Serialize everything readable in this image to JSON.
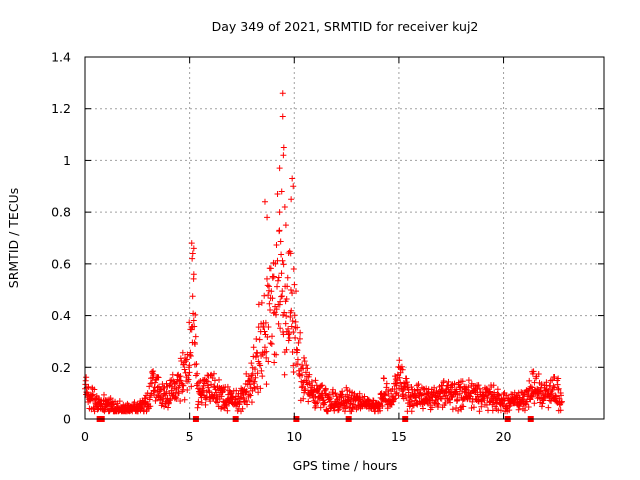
{
  "chart_data": {
    "type": "scatter",
    "title": "Day 349 of 2021, SRMTID for receiver kuj2",
    "xlabel": "GPS time / hours",
    "ylabel": "SRMTID / TECUs",
    "xlim": [
      0,
      24.8
    ],
    "ylim": [
      0,
      1.4
    ],
    "xticks": [
      0,
      5,
      10,
      15,
      20
    ],
    "xtick_labels": [
      "0",
      "5",
      "10",
      "15",
      "20"
    ],
    "yticks": [
      0,
      0.2,
      0.4,
      0.6,
      0.8,
      1.0,
      1.2,
      1.4
    ],
    "ytick_labels": [
      "0",
      "0.2",
      "0.4",
      "0.6",
      "0.8",
      "1",
      "1.2",
      "1.4"
    ],
    "grid": true,
    "marker": "plus",
    "color": "#ff0000",
    "envelope": {
      "x": [
        0.0,
        0.3,
        0.7,
        1.0,
        1.5,
        2.0,
        2.5,
        3.0,
        3.3,
        3.6,
        4.0,
        4.5,
        4.8,
        5.0,
        5.2,
        5.4,
        5.7,
        6.0,
        6.5,
        7.0,
        7.5,
        8.0,
        8.3,
        8.6,
        9.0,
        9.3,
        9.5,
        9.8,
        10.0,
        10.3,
        10.6,
        11.0,
        11.5,
        12.0,
        12.5,
        13.0,
        13.5,
        14.0,
        14.3,
        14.6,
        15.0,
        15.5,
        16.0,
        16.5,
        17.0,
        17.5,
        18.0,
        18.5,
        19.0,
        19.5,
        20.0,
        20.5,
        21.0,
        21.5,
        22.0,
        22.5,
        22.8
      ],
      "y": [
        0.16,
        0.12,
        0.08,
        0.09,
        0.06,
        0.055,
        0.055,
        0.1,
        0.22,
        0.12,
        0.14,
        0.2,
        0.3,
        0.36,
        0.55,
        0.13,
        0.18,
        0.17,
        0.14,
        0.1,
        0.12,
        0.22,
        0.42,
        0.5,
        0.62,
        0.7,
        0.58,
        0.62,
        0.55,
        0.3,
        0.2,
        0.14,
        0.12,
        0.1,
        0.11,
        0.1,
        0.08,
        0.07,
        0.16,
        0.1,
        0.22,
        0.12,
        0.13,
        0.12,
        0.14,
        0.13,
        0.15,
        0.14,
        0.12,
        0.13,
        0.09,
        0.1,
        0.12,
        0.2,
        0.14,
        0.17,
        0.12
      ]
    },
    "outliers": [
      {
        "x": 9.45,
        "y": 1.26
      },
      {
        "x": 9.45,
        "y": 1.17
      },
      {
        "x": 9.5,
        "y": 1.05
      },
      {
        "x": 9.48,
        "y": 1.02
      },
      {
        "x": 9.3,
        "y": 0.97
      },
      {
        "x": 9.9,
        "y": 0.93
      },
      {
        "x": 9.95,
        "y": 0.9
      },
      {
        "x": 9.4,
        "y": 0.88
      },
      {
        "x": 9.2,
        "y": 0.87
      },
      {
        "x": 9.85,
        "y": 0.85
      },
      {
        "x": 8.6,
        "y": 0.84
      },
      {
        "x": 9.55,
        "y": 0.82
      },
      {
        "x": 9.3,
        "y": 0.8
      },
      {
        "x": 8.7,
        "y": 0.78
      },
      {
        "x": 9.6,
        "y": 0.75
      },
      {
        "x": 5.1,
        "y": 0.68
      },
      {
        "x": 5.2,
        "y": 0.66
      },
      {
        "x": 5.15,
        "y": 0.64
      },
      {
        "x": 5.12,
        "y": 0.62
      },
      {
        "x": 5.2,
        "y": 0.56
      }
    ],
    "zero_markers_x": [
      0.7,
      0.8,
      5.3,
      7.2,
      10.1,
      12.6,
      15.3,
      20.2,
      21.3
    ]
  }
}
